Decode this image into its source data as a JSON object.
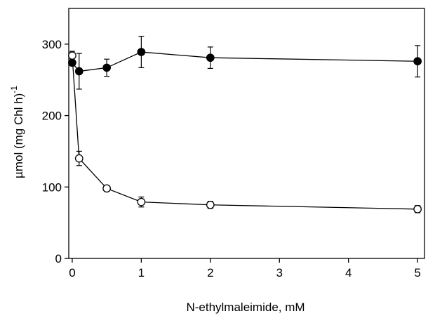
{
  "chart_data": {
    "type": "line",
    "title": "",
    "xlabel": "N-ethylmaleimide, mM",
    "ylabel": "µmol (mg Chl h)",
    "ylabel_superscript": "-1",
    "xlim": [
      -0.05,
      5.1
    ],
    "ylim": [
      0,
      350
    ],
    "xticks": [
      0,
      1,
      2,
      3,
      4,
      5
    ],
    "yticks": [
      0,
      100,
      200,
      300
    ],
    "grid": false,
    "series": [
      {
        "marker": "filled-circle",
        "x": [
          0,
          0.1,
          0.5,
          1,
          2,
          5
        ],
        "y": [
          274,
          262,
          267,
          289,
          281,
          276
        ],
        "err": [
          0,
          25,
          12,
          22,
          15,
          22
        ]
      },
      {
        "marker": "open-circle",
        "x": [
          0,
          0.1,
          0.5,
          1,
          2,
          5
        ],
        "y": [
          284,
          140,
          98,
          79,
          75,
          69
        ],
        "err": [
          6,
          10,
          4,
          7,
          5,
          5
        ]
      }
    ]
  }
}
